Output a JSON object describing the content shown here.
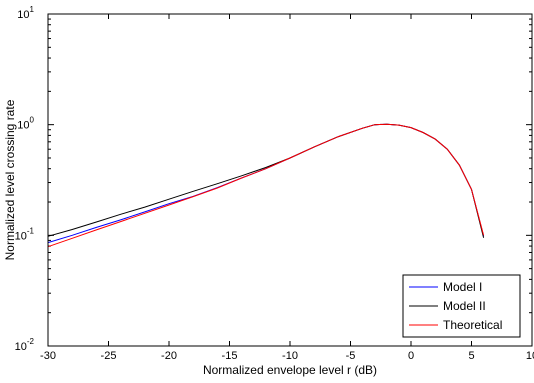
{
  "chart_data": {
    "type": "line",
    "xlabel": "Normalized envelope level r (dB)",
    "ylabel": "Normalized level crossing rate",
    "xlim": [
      -30,
      10
    ],
    "ylim": [
      0.01,
      10
    ],
    "yscale": "log",
    "grid": false,
    "legend_position": "bottom-right",
    "x_ticks": [
      -30,
      -25,
      -20,
      -15,
      -10,
      -5,
      0,
      5,
      10
    ],
    "x_tick_labels": [
      "-30",
      "-25",
      "-20",
      "-15",
      "-10",
      "-5",
      "0",
      "5",
      "10"
    ],
    "y_ticks": [
      0.01,
      0.1,
      1,
      10
    ],
    "y_tick_labels": [
      {
        "base": "10",
        "exp": "-2"
      },
      {
        "base": "10",
        "exp": "-1"
      },
      {
        "base": "10",
        "exp": "0"
      },
      {
        "base": "10",
        "exp": "1"
      }
    ],
    "series": [
      {
        "name": "Model I",
        "color": "#0000ff",
        "x": [
          -30,
          -28,
          -26,
          -24,
          -22,
          -20,
          -18,
          -16,
          -14,
          -12,
          -10,
          -8,
          -6,
          -4,
          -3,
          -2,
          -1,
          0,
          1,
          2,
          3,
          4,
          5,
          6
        ],
        "y": [
          0.086,
          0.1,
          0.118,
          0.138,
          0.163,
          0.193,
          0.225,
          0.27,
          0.33,
          0.4,
          0.5,
          0.63,
          0.78,
          0.93,
          1.0,
          1.01,
          0.99,
          0.94,
          0.85,
          0.74,
          0.6,
          0.43,
          0.26,
          0.098
        ]
      },
      {
        "name": "Model II",
        "color": "#000000",
        "x": [
          -30,
          -28,
          -26,
          -24,
          -22,
          -20,
          -18,
          -16,
          -14,
          -12,
          -10,
          -8,
          -6,
          -4,
          -3,
          -2,
          -1,
          0,
          1,
          2,
          3,
          4,
          5,
          6
        ],
        "y": [
          0.098,
          0.113,
          0.132,
          0.155,
          0.18,
          0.212,
          0.25,
          0.293,
          0.345,
          0.41,
          0.5,
          0.63,
          0.78,
          0.93,
          1.0,
          1.01,
          0.99,
          0.94,
          0.85,
          0.74,
          0.6,
          0.43,
          0.26,
          0.095
        ]
      },
      {
        "name": "Theoretical",
        "color": "#ff0000",
        "x": [
          -30,
          -28,
          -26,
          -24,
          -22,
          -20,
          -18,
          -16,
          -14,
          -12,
          -10,
          -8,
          -6,
          -4,
          -3,
          -2,
          -1,
          0,
          1,
          2,
          3,
          4,
          5,
          6
        ],
        "y": [
          0.079,
          0.094,
          0.112,
          0.133,
          0.158,
          0.188,
          0.224,
          0.268,
          0.33,
          0.4,
          0.5,
          0.63,
          0.78,
          0.93,
          1.0,
          1.01,
          0.99,
          0.94,
          0.85,
          0.74,
          0.6,
          0.43,
          0.26,
          0.1
        ]
      }
    ]
  }
}
